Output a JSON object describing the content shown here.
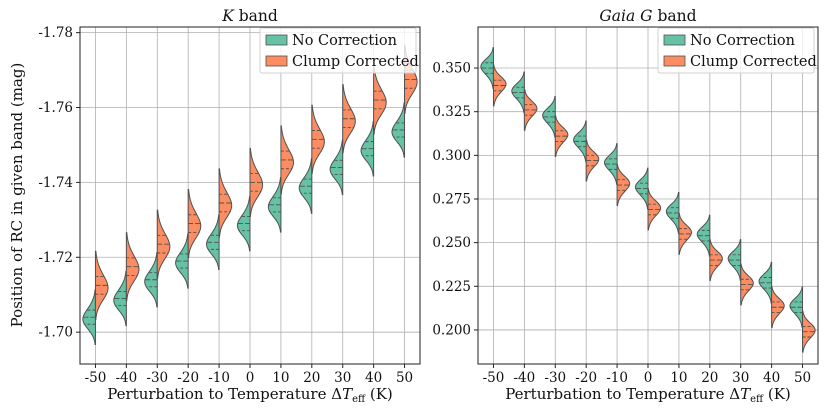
{
  "chart_data": [
    {
      "type": "violin",
      "title_parts": {
        "italic": "K",
        "rest": " band"
      },
      "xlabel": "Perturbation to Temperature ΔT_eff (K)",
      "ylabel": "Position of RC in given band (mag)",
      "categories": [
        "-50",
        "-40",
        "-30",
        "-20",
        "-10",
        "0",
        "10",
        "20",
        "30",
        "40",
        "50"
      ],
      "ylim": [
        -1.7815,
        -1.6915
      ],
      "y_inverted": true,
      "yticks": [
        -1.7,
        -1.72,
        -1.74,
        -1.76,
        -1.78
      ],
      "ytick_labels": [
        "-1.70",
        "-1.72",
        "-1.74",
        "-1.76",
        "-1.78"
      ],
      "grid": true,
      "legend_position": "top-right",
      "series": [
        {
          "name": "No Correction",
          "color": "#66c2a5",
          "side": "left",
          "medians": [
            -1.704,
            -1.709,
            -1.714,
            -1.719,
            -1.724,
            -1.729,
            -1.734,
            -1.739,
            -1.744,
            -1.749,
            -1.754
          ],
          "spread_sd": 0.0028
        },
        {
          "name": "Clump Corrected",
          "color": "#fc8d62",
          "side": "right",
          "medians": [
            -1.7125,
            -1.7175,
            -1.7235,
            -1.729,
            -1.7345,
            -1.74,
            -1.746,
            -1.7515,
            -1.757,
            -1.762,
            -1.7675
          ],
          "spread_sd": 0.0035
        }
      ]
    },
    {
      "type": "violin",
      "title_parts": {
        "italic": "Gaia G",
        "rest": " band"
      },
      "xlabel": "Perturbation to Temperature ΔT_eff (K)",
      "ylabel": "",
      "categories": [
        "-50",
        "-40",
        "-30",
        "-20",
        "-10",
        "0",
        "10",
        "20",
        "30",
        "40",
        "50"
      ],
      "ylim": [
        0.1805,
        0.3735
      ],
      "y_inverted": false,
      "yticks": [
        0.2,
        0.225,
        0.25,
        0.275,
        0.3,
        0.325,
        0.35
      ],
      "ytick_labels": [
        "0.200",
        "0.225",
        "0.250",
        "0.275",
        "0.300",
        "0.325",
        "0.350"
      ],
      "grid": true,
      "legend_position": "top-right",
      "series": [
        {
          "name": "No Correction",
          "color": "#66c2a5",
          "side": "left",
          "medians": [
            0.35,
            0.336,
            0.322,
            0.308,
            0.295,
            0.281,
            0.267,
            0.254,
            0.24,
            0.227,
            0.213
          ],
          "spread_sd": 0.0045
        },
        {
          "name": "Clump Corrected",
          "color": "#fc8d62",
          "side": "right",
          "medians": [
            0.34,
            0.326,
            0.311,
            0.297,
            0.283,
            0.269,
            0.255,
            0.24,
            0.226,
            0.213,
            0.199
          ],
          "spread_sd": 0.0045
        }
      ]
    }
  ]
}
